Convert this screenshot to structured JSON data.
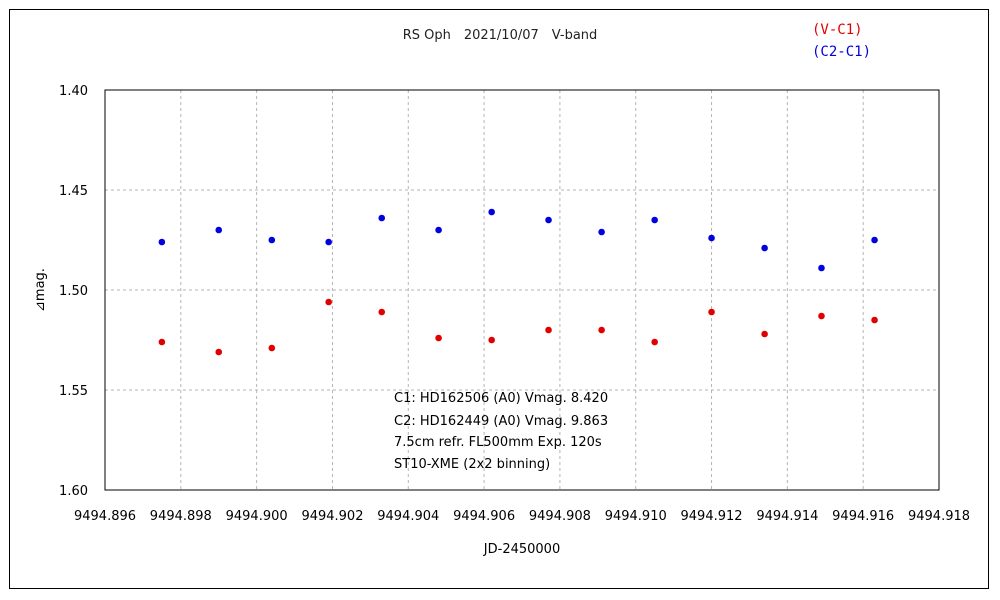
{
  "chart_data": {
    "type": "scatter",
    "title": "RS Oph　2021/10/07　V-band",
    "xlabel": "JD-2450000",
    "ylabel": "⊿mag.",
    "xlim": [
      9494.896,
      9494.918
    ],
    "ylim": [
      1.4,
      1.6
    ],
    "y_inverted": true,
    "grid": true,
    "legend_position": "top-right",
    "x_ticks": [
      "9494.896",
      "9494.898",
      "9494.900",
      "9494.902",
      "9494.904",
      "9494.906",
      "9494.908",
      "9494.910",
      "9494.912",
      "9494.914",
      "9494.916",
      "9494.918"
    ],
    "y_ticks": [
      "1.40",
      "1.45",
      "1.50",
      "1.55",
      "1.60"
    ],
    "series": [
      {
        "name": "(V-C1)",
        "color": "#e00000",
        "x": [
          9494.8975,
          9494.899,
          9494.9004,
          9494.9019,
          9494.9033,
          9494.9048,
          9494.9062,
          9494.9077,
          9494.9091,
          9494.9105,
          9494.912,
          9494.9134,
          9494.9149,
          9494.9163
        ],
        "y": [
          1.526,
          1.531,
          1.529,
          1.506,
          1.511,
          1.524,
          1.525,
          1.52,
          1.52,
          1.526,
          1.511,
          1.522,
          1.513,
          1.515
        ]
      },
      {
        "name": "(C2-C1)",
        "color": "#0000e0",
        "x": [
          9494.8975,
          9494.899,
          9494.9004,
          9494.9019,
          9494.9033,
          9494.9048,
          9494.9062,
          9494.9077,
          9494.9091,
          9494.9105,
          9494.912,
          9494.9134,
          9494.9149,
          9494.9163
        ],
        "y": [
          1.476,
          1.47,
          1.475,
          1.476,
          1.464,
          1.47,
          1.461,
          1.465,
          1.471,
          1.465,
          1.474,
          1.479,
          1.489,
          1.475
        ]
      }
    ],
    "annotations": [
      "C1: HD162506 (A0) Vmag. 8.420",
      "C2: HD162449 (A0) Vmag. 9.863",
      "7.5cm refr. FL500mm Exp. 120s",
      "ST10-XME (2x2 binning)"
    ]
  }
}
